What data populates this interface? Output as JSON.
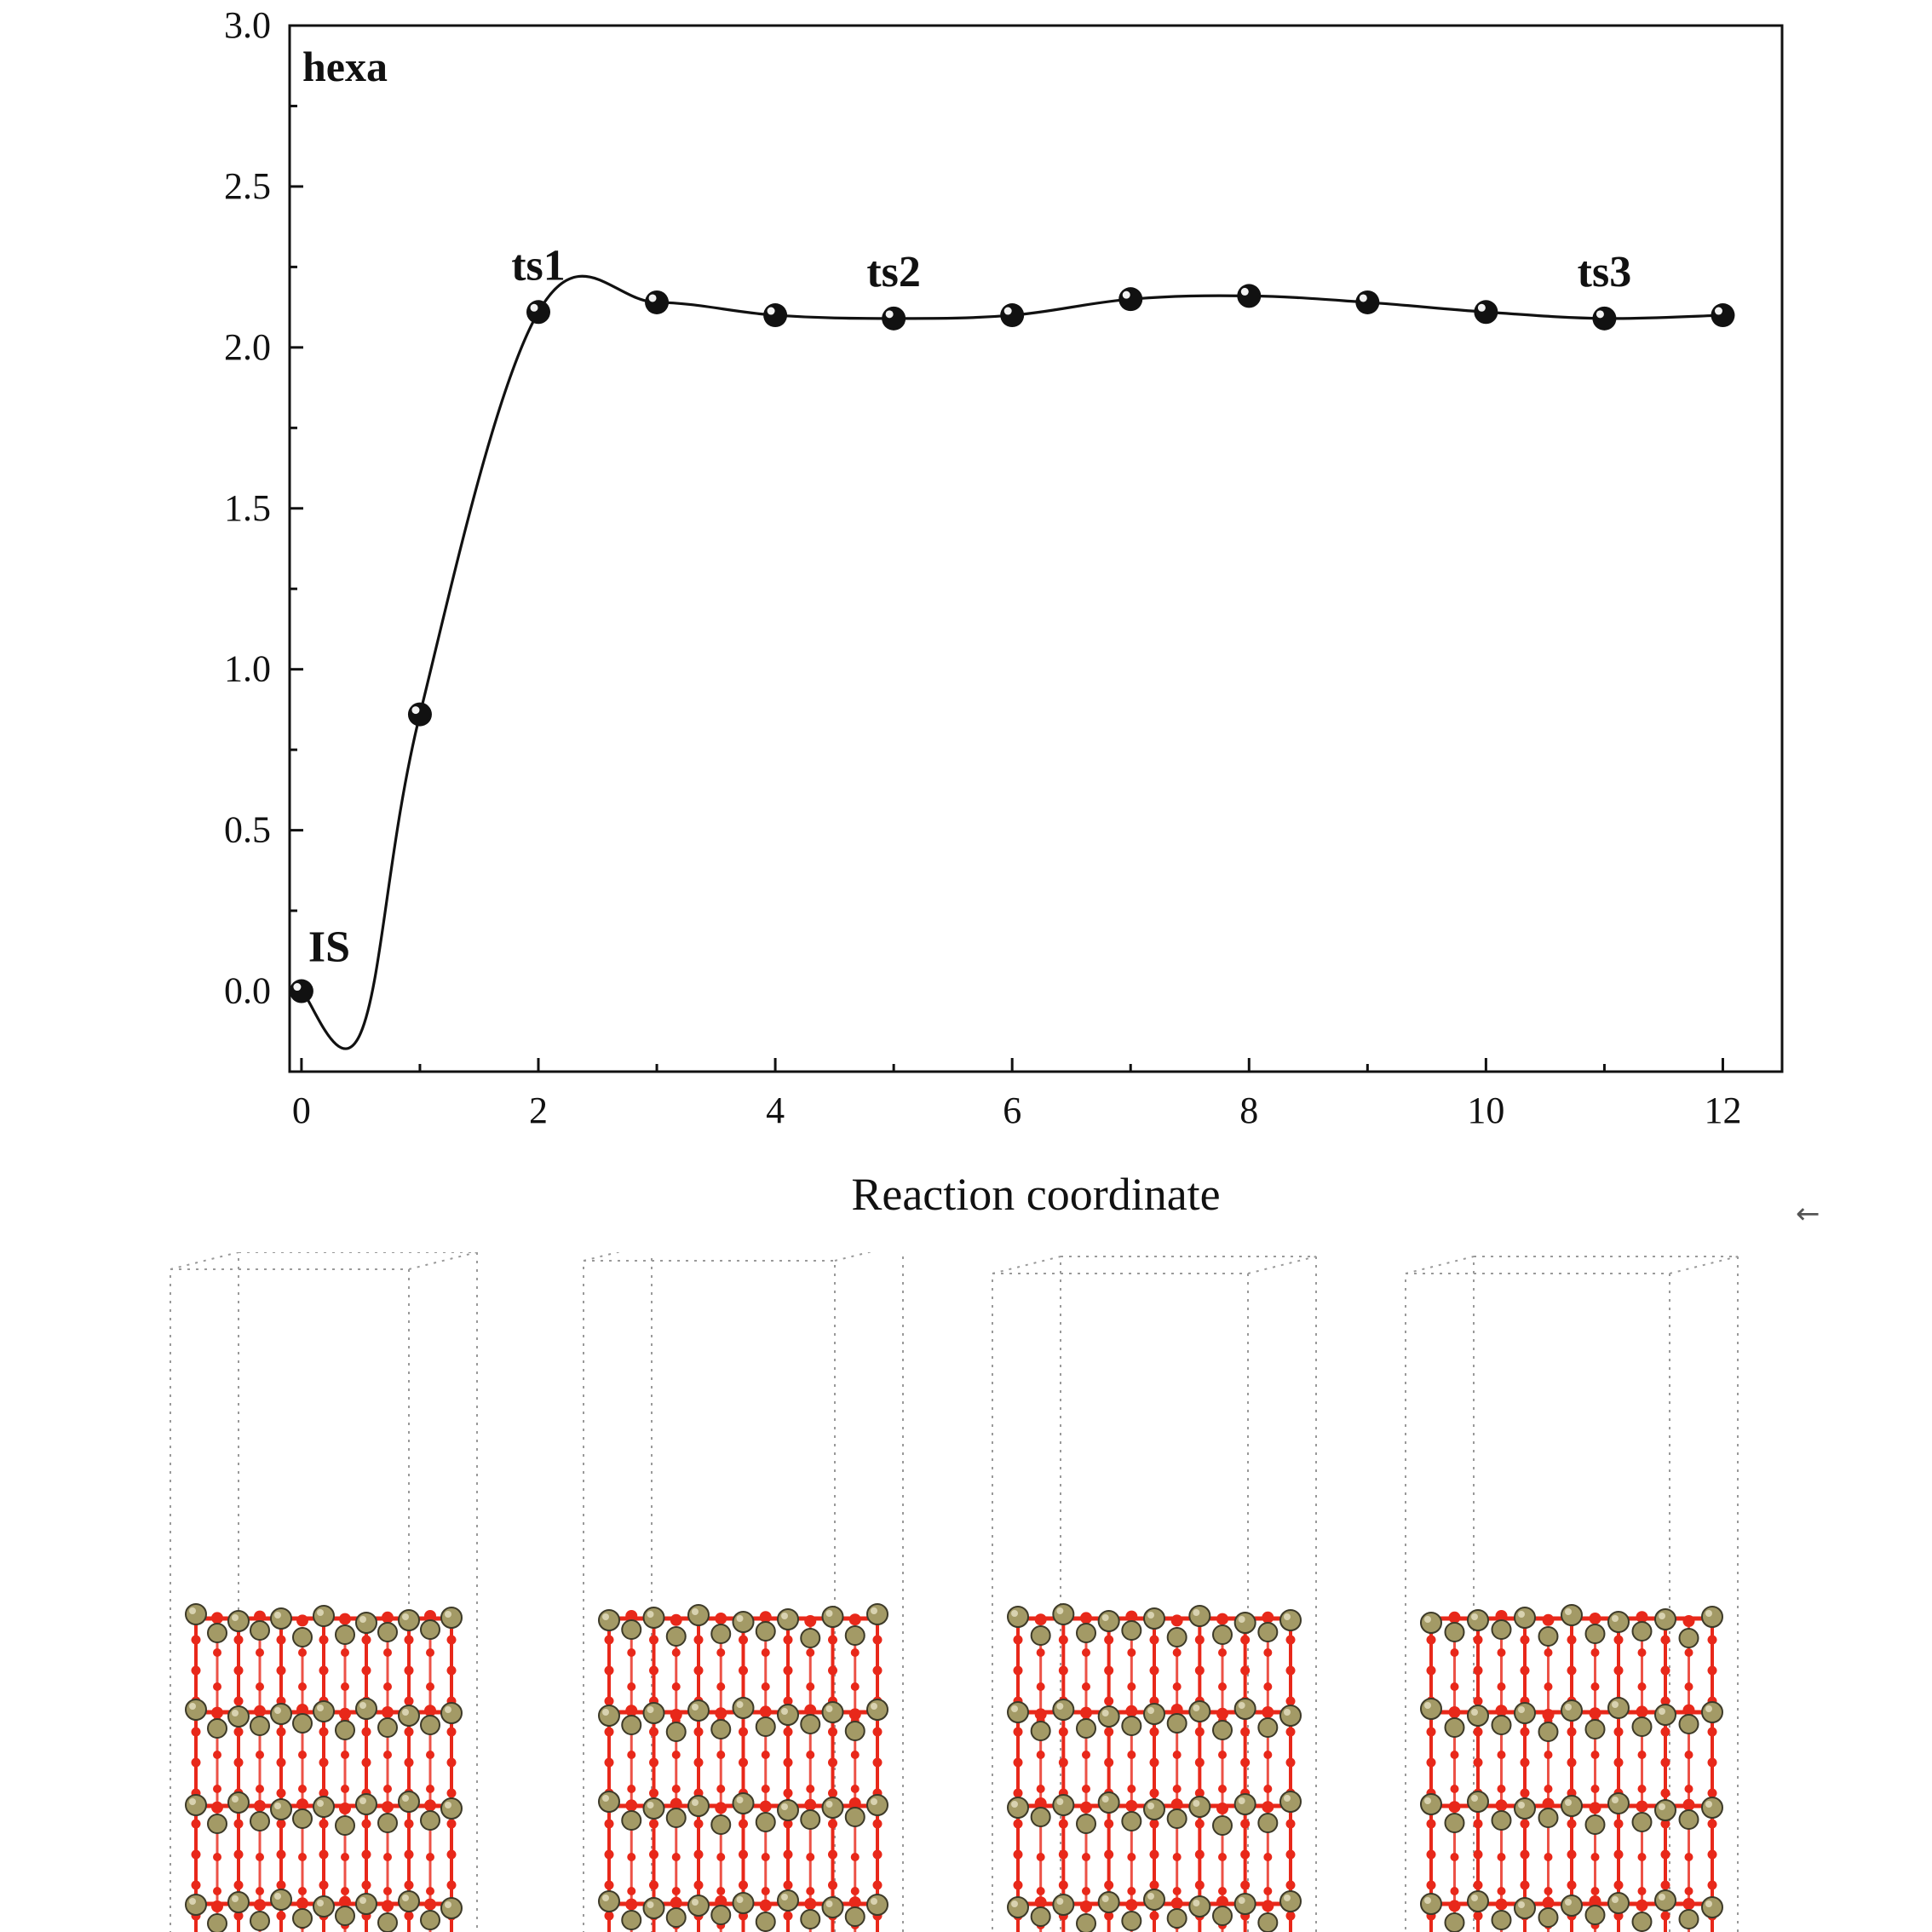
{
  "chart_data": {
    "type": "line",
    "title": "",
    "panel_label": "hexa",
    "xlabel": "Reaction coordinate",
    "ylabel": "",
    "xlim": [
      -0.1,
      12.5
    ],
    "ylim": [
      -0.25,
      3.0
    ],
    "xticks": [
      0,
      2,
      4,
      6,
      8,
      10,
      12
    ],
    "yticks": [
      "0.0",
      "0.5",
      "1.0",
      "1.5",
      "2.0",
      "2.5",
      "3.0"
    ],
    "grid": false,
    "legend": "none",
    "series": [
      {
        "x": [
          0,
          1,
          2,
          3,
          4,
          5,
          6,
          7,
          8,
          9,
          10,
          11,
          12
        ],
        "y": [
          0.0,
          0.86,
          2.11,
          2.14,
          2.1,
          2.09,
          2.1,
          2.15,
          2.16,
          2.14,
          2.11,
          2.09,
          2.1
        ]
      }
    ],
    "curve_minimum": {
      "x": 0.5,
      "y": -0.13
    },
    "annotations": [
      {
        "text": "IS",
        "x": 0,
        "y": 0.0
      },
      {
        "text": "ts1",
        "x": 2,
        "y": 2.11
      },
      {
        "text": "ts2",
        "x": 5,
        "y": 2.09
      },
      {
        "text": "ts3",
        "x": 11,
        "y": 2.09
      }
    ]
  },
  "structures": {
    "count": 4,
    "atom_color_metal": "#a39a66",
    "atom_color_oxygen": "#e8281a",
    "cell_color": "#9a9a9a"
  },
  "colors": {
    "axis": "#111111",
    "curve": "#111111",
    "marker": "#111111"
  }
}
